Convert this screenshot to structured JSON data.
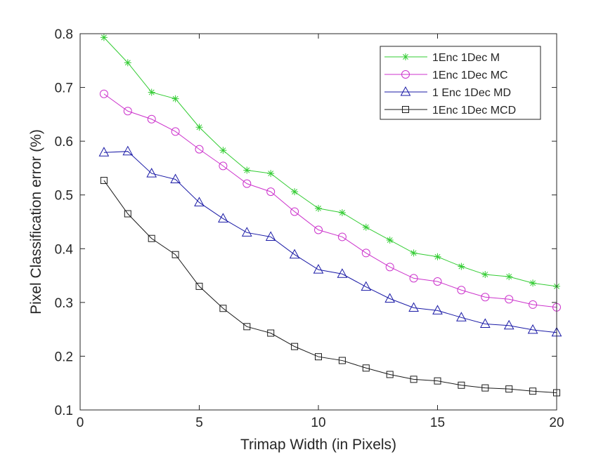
{
  "chart_data": {
    "type": "line",
    "title": "",
    "xlabel": "Trimap Width (in Pixels)",
    "ylabel": "Pixel Classification error (%)",
    "xlim": [
      0,
      20
    ],
    "ylim": [
      0.1,
      0.8
    ],
    "xticks": [
      0,
      5,
      10,
      15,
      20
    ],
    "yticks": [
      0.1,
      0.2,
      0.3,
      0.4,
      0.5,
      0.6,
      0.7,
      0.8
    ],
    "xtick_labels": [
      "0",
      "5",
      "10",
      "15",
      "20"
    ],
    "ytick_labels": [
      "0.1",
      "0.2",
      "0.3",
      "0.4",
      "0.5",
      "0.6",
      "0.7",
      "0.8"
    ],
    "grid": false,
    "legend_position": "top-right",
    "x": [
      1,
      2,
      3,
      4,
      5,
      6,
      7,
      8,
      9,
      10,
      11,
      12,
      13,
      14,
      15,
      16,
      17,
      18,
      19,
      20
    ],
    "series": [
      {
        "name": "1Enc 1Dec M",
        "color": "#33cc33",
        "marker": "asterisk",
        "values": [
          0.793,
          0.746,
          0.691,
          0.679,
          0.626,
          0.583,
          0.546,
          0.54,
          0.506,
          0.475,
          0.467,
          0.44,
          0.416,
          0.392,
          0.385,
          0.367,
          0.352,
          0.348,
          0.336,
          0.33
        ]
      },
      {
        "name": "1Enc 1Dec MC",
        "color": "#cc33cc",
        "marker": "circle",
        "values": [
          0.688,
          0.656,
          0.641,
          0.618,
          0.585,
          0.554,
          0.521,
          0.506,
          0.469,
          0.435,
          0.422,
          0.392,
          0.366,
          0.345,
          0.339,
          0.323,
          0.31,
          0.306,
          0.296,
          0.291
        ]
      },
      {
        "name": "1 Enc 1Dec MD",
        "color": "#1a1aa6",
        "marker": "triangle",
        "values": [
          0.579,
          0.581,
          0.54,
          0.529,
          0.486,
          0.456,
          0.43,
          0.422,
          0.389,
          0.361,
          0.353,
          0.329,
          0.307,
          0.29,
          0.285,
          0.272,
          0.26,
          0.257,
          0.249,
          0.244
        ]
      },
      {
        "name": "1Enc 1Dec MCD",
        "color": "#1a1a1a",
        "marker": "square",
        "values": [
          0.527,
          0.465,
          0.419,
          0.389,
          0.33,
          0.289,
          0.255,
          0.243,
          0.218,
          0.199,
          0.192,
          0.178,
          0.166,
          0.157,
          0.154,
          0.146,
          0.141,
          0.139,
          0.135,
          0.132
        ]
      }
    ]
  }
}
